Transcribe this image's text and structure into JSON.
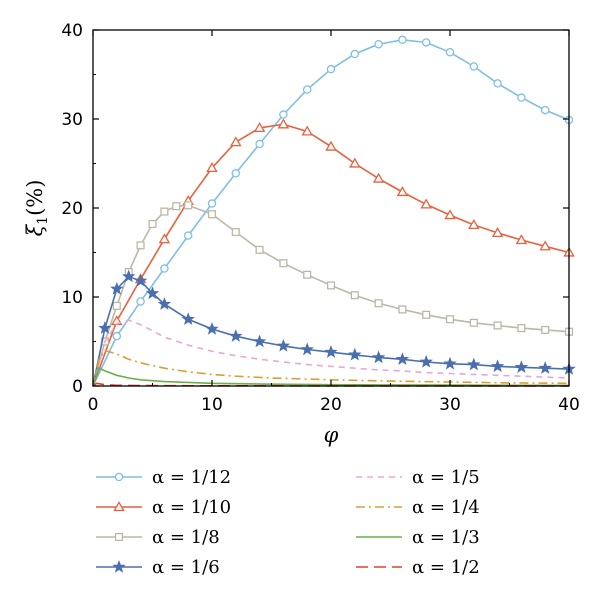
{
  "chart_data": {
    "type": "line",
    "xlabel": "φ",
    "ylabel_main": "ξ",
    "ylabel_sub": "1",
    "ylabel_unit": "(%)",
    "xlim": [
      0,
      40
    ],
    "ylim": [
      0,
      40
    ],
    "xticks": [
      "0",
      "10",
      "20",
      "30",
      "40"
    ],
    "yticks": [
      "0",
      "10",
      "20",
      "30",
      "40"
    ],
    "grid": false,
    "legend_position": "bottom",
    "series": [
      {
        "name": "α = 1/12",
        "color": "#7fbfe3",
        "marker": "circle",
        "dash": "",
        "points": [
          [
            0,
            0
          ],
          [
            2,
            5.6
          ],
          [
            4,
            9.5
          ],
          [
            6,
            13.2
          ],
          [
            8,
            16.9
          ],
          [
            10,
            20.5
          ],
          [
            12,
            23.9
          ],
          [
            14,
            27.2
          ],
          [
            16,
            30.5
          ],
          [
            18,
            33.3
          ],
          [
            20,
            35.6
          ],
          [
            22,
            37.3
          ],
          [
            24,
            38.4
          ],
          [
            26,
            38.9
          ],
          [
            28,
            38.6
          ],
          [
            30,
            37.5
          ],
          [
            32,
            35.9
          ],
          [
            34,
            34.0
          ],
          [
            36,
            32.4
          ],
          [
            38,
            31.0
          ],
          [
            40,
            29.9
          ]
        ]
      },
      {
        "name": "α = 1/10",
        "color": "#e8613c",
        "marker": "triangle",
        "dash": "",
        "points": [
          [
            0,
            0
          ],
          [
            2,
            7.3
          ],
          [
            4,
            12.0
          ],
          [
            6,
            16.5
          ],
          [
            8,
            20.8
          ],
          [
            10,
            24.5
          ],
          [
            12,
            27.4
          ],
          [
            14,
            29.0
          ],
          [
            16,
            29.4
          ],
          [
            18,
            28.6
          ],
          [
            20,
            26.9
          ],
          [
            22,
            25.0
          ],
          [
            24,
            23.3
          ],
          [
            26,
            21.8
          ],
          [
            28,
            20.4
          ],
          [
            30,
            19.2
          ],
          [
            32,
            18.1
          ],
          [
            34,
            17.2
          ],
          [
            36,
            16.4
          ],
          [
            38,
            15.7
          ],
          [
            40,
            15.0
          ]
        ]
      },
      {
        "name": "α = 1/8",
        "color": "#bdb7a6",
        "marker": "square",
        "dash": "",
        "points": [
          [
            0,
            0
          ],
          [
            1,
            5.0
          ],
          [
            2,
            9.0
          ],
          [
            3,
            12.8
          ],
          [
            4,
            15.8
          ],
          [
            5,
            18.2
          ],
          [
            6,
            19.6
          ],
          [
            7,
            20.2
          ],
          [
            8,
            20.3
          ],
          [
            10,
            19.3
          ],
          [
            12,
            17.3
          ],
          [
            14,
            15.3
          ],
          [
            16,
            13.8
          ],
          [
            18,
            12.5
          ],
          [
            20,
            11.3
          ],
          [
            22,
            10.2
          ],
          [
            24,
            9.3
          ],
          [
            26,
            8.6
          ],
          [
            28,
            8.0
          ],
          [
            30,
            7.5
          ],
          [
            32,
            7.1
          ],
          [
            34,
            6.8
          ],
          [
            36,
            6.5
          ],
          [
            38,
            6.3
          ],
          [
            40,
            6.1
          ]
        ]
      },
      {
        "name": "α = 1/6",
        "color": "#4a6faf",
        "marker": "star",
        "dash": "",
        "points": [
          [
            0,
            0
          ],
          [
            1,
            6.5
          ],
          [
            2,
            10.9
          ],
          [
            3,
            12.3
          ],
          [
            4,
            11.8
          ],
          [
            5,
            10.4
          ],
          [
            6,
            9.2
          ],
          [
            8,
            7.5
          ],
          [
            10,
            6.4
          ],
          [
            12,
            5.6
          ],
          [
            14,
            5.0
          ],
          [
            16,
            4.5
          ],
          [
            18,
            4.1
          ],
          [
            20,
            3.8
          ],
          [
            22,
            3.5
          ],
          [
            24,
            3.2
          ],
          [
            26,
            3.0
          ],
          [
            28,
            2.7
          ],
          [
            30,
            2.5
          ],
          [
            32,
            2.4
          ],
          [
            34,
            2.2
          ],
          [
            36,
            2.1
          ],
          [
            38,
            2.0
          ],
          [
            40,
            1.9
          ]
        ]
      },
      {
        "name": "α = 1/5",
        "color": "#e6a8d7",
        "marker": "none",
        "dash": "6,5",
        "points": [
          [
            0,
            0
          ],
          [
            1,
            5.0
          ],
          [
            2,
            7.0
          ],
          [
            3,
            7.4
          ],
          [
            4,
            6.9
          ],
          [
            5,
            6.2
          ],
          [
            6,
            5.5
          ],
          [
            8,
            4.6
          ],
          [
            10,
            3.9
          ],
          [
            12,
            3.4
          ],
          [
            14,
            3.0
          ],
          [
            16,
            2.7
          ],
          [
            18,
            2.4
          ],
          [
            20,
            2.2
          ],
          [
            22,
            2.0
          ],
          [
            24,
            1.8
          ],
          [
            26,
            1.7
          ],
          [
            28,
            1.5
          ],
          [
            30,
            1.4
          ],
          [
            32,
            1.3
          ],
          [
            34,
            1.2
          ],
          [
            36,
            1.1
          ],
          [
            38,
            1.0
          ],
          [
            40,
            0.9
          ]
        ]
      },
      {
        "name": "α = 1/4",
        "color": "#d9a030",
        "marker": "none",
        "dash": "9,4,2,4",
        "points": [
          [
            0,
            0
          ],
          [
            0.5,
            3.0
          ],
          [
            1,
            4.0
          ],
          [
            2,
            3.6
          ],
          [
            3,
            3.0
          ],
          [
            4,
            2.6
          ],
          [
            6,
            2.0
          ],
          [
            8,
            1.6
          ],
          [
            10,
            1.3
          ],
          [
            12,
            1.1
          ],
          [
            15,
            0.9
          ],
          [
            20,
            0.7
          ],
          [
            25,
            0.55
          ],
          [
            30,
            0.45
          ],
          [
            35,
            0.35
          ],
          [
            40,
            0.3
          ]
        ]
      },
      {
        "name": "α = 1/3",
        "color": "#6ab04c",
        "marker": "none",
        "dash": "",
        "points": [
          [
            0,
            0
          ],
          [
            0.5,
            2.0
          ],
          [
            1,
            1.7
          ],
          [
            2,
            1.2
          ],
          [
            3,
            0.9
          ],
          [
            4,
            0.7
          ],
          [
            6,
            0.5
          ],
          [
            8,
            0.4
          ],
          [
            10,
            0.3
          ],
          [
            15,
            0.2
          ],
          [
            20,
            0.15
          ],
          [
            30,
            0.1
          ],
          [
            40,
            0.07
          ]
        ]
      },
      {
        "name": "α = 1/2",
        "color": "#e0402a",
        "marker": "none",
        "dash": "12,6",
        "points": [
          [
            0,
            0
          ],
          [
            0.3,
            0.3
          ],
          [
            1,
            0.15
          ],
          [
            2,
            0.08
          ],
          [
            5,
            0.04
          ],
          [
            10,
            0.02
          ],
          [
            20,
            0.01
          ],
          [
            40,
            0.0
          ]
        ]
      }
    ]
  }
}
